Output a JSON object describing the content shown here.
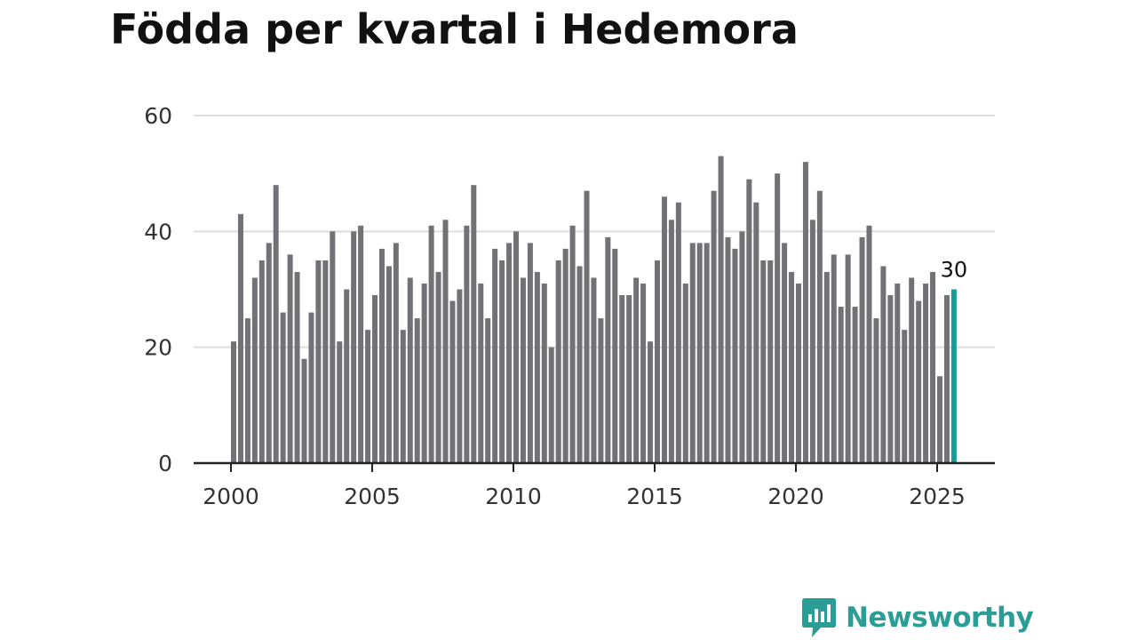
{
  "chart_data": {
    "type": "bar",
    "title": "Födda per kvartal i Hedemora",
    "xlabel": "",
    "ylabel": "",
    "ylim": [
      0,
      60
    ],
    "yticks": [
      "0",
      "20",
      "40",
      "60"
    ],
    "xticks": [
      "2000",
      "2005",
      "2010",
      "2015",
      "2020",
      "2025"
    ],
    "grid": true,
    "first_quarter": "2000 Q1",
    "colors": {
      "bar": "#727176",
      "highlight": "#1a9c96",
      "grid": "#dddddd",
      "axis": "#222222"
    },
    "highlight_label": "30",
    "values": [
      21,
      43,
      25,
      32,
      35,
      38,
      48,
      26,
      36,
      33,
      18,
      26,
      35,
      35,
      40,
      21,
      30,
      40,
      41,
      23,
      29,
      37,
      34,
      38,
      23,
      32,
      25,
      31,
      41,
      33,
      42,
      28,
      30,
      41,
      48,
      31,
      25,
      37,
      35,
      38,
      40,
      32,
      38,
      33,
      31,
      20,
      35,
      37,
      41,
      34,
      47,
      32,
      25,
      39,
      37,
      29,
      29,
      32,
      31,
      21,
      35,
      46,
      42,
      45,
      31,
      38,
      38,
      38,
      47,
      53,
      39,
      37,
      40,
      49,
      45,
      35,
      35,
      50,
      38,
      33,
      31,
      52,
      42,
      47,
      33,
      36,
      27,
      36,
      27,
      39,
      41,
      25,
      34,
      29,
      31,
      23,
      32,
      28,
      31,
      33,
      15,
      29,
      30
    ]
  },
  "brand": {
    "name": "Newsworthy",
    "icon": "newsworthy-logo-icon"
  }
}
